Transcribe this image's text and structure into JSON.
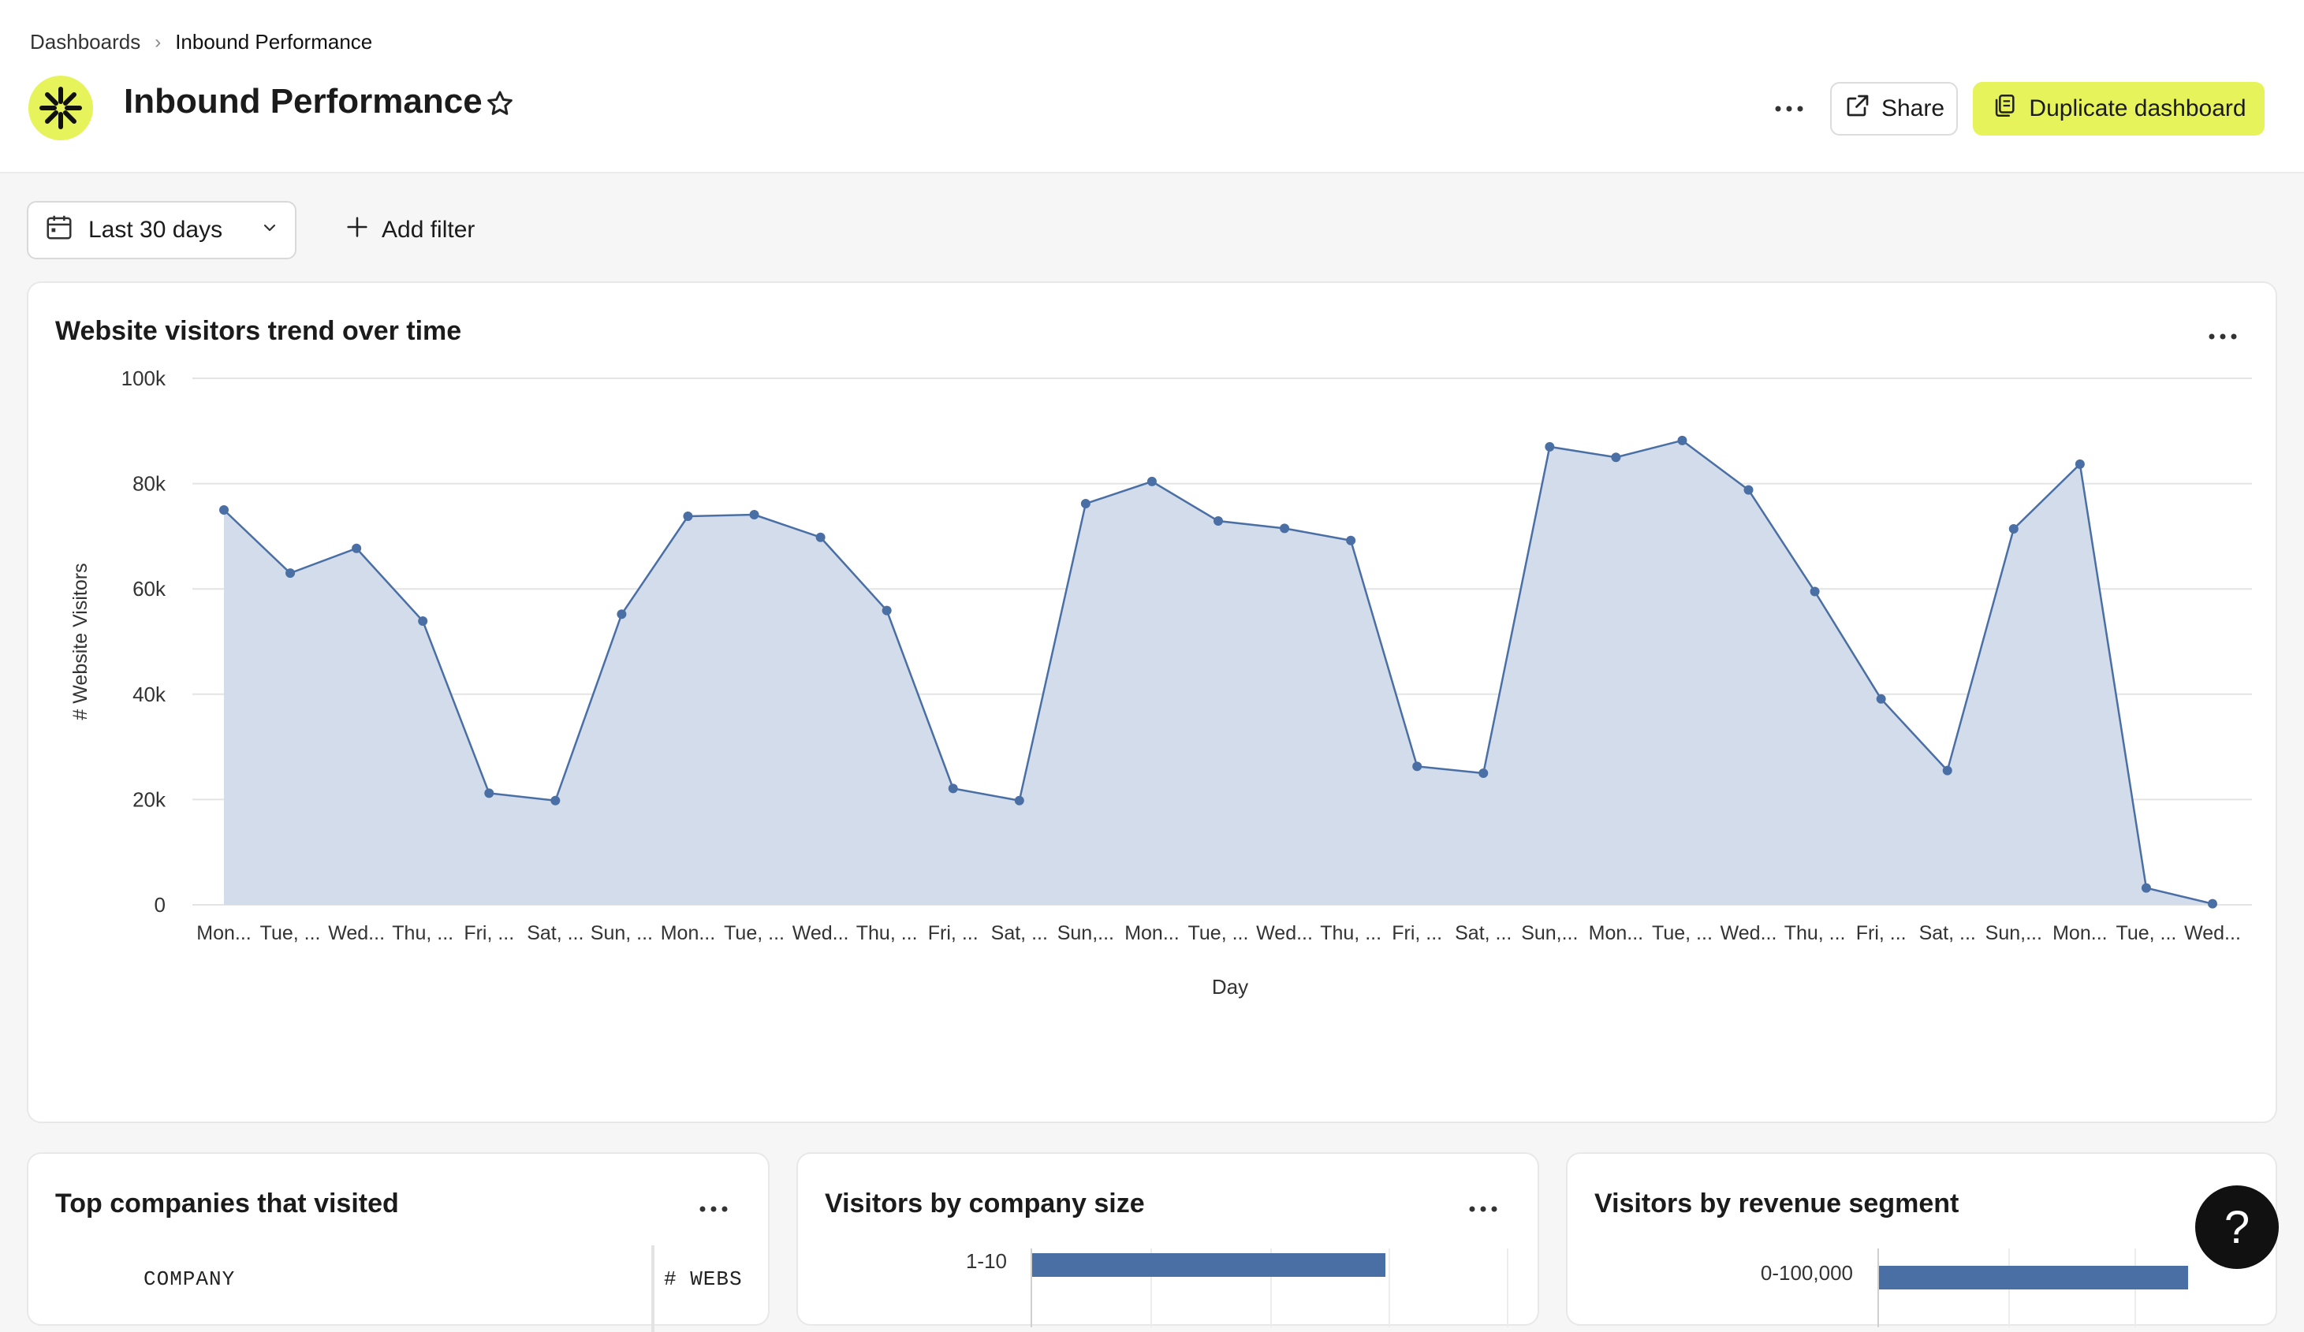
{
  "breadcrumb": {
    "parent": "Dashboards",
    "current": "Inbound Performance"
  },
  "header": {
    "title": "Inbound Performance",
    "share_label": "Share",
    "duplicate_label": "Duplicate dashboard"
  },
  "filters": {
    "date_range": "Last 30 days",
    "add_filter_label": "Add filter"
  },
  "main_card": {
    "title": "Website visitors trend over time"
  },
  "chart_data": [
    {
      "type": "area",
      "title": "Website visitors trend over time",
      "xlabel": "Day",
      "ylabel": "# Website Visitors",
      "ylim": [
        0,
        100000
      ],
      "yticks": [
        "0",
        "20k",
        "40k",
        "60k",
        "80k",
        "100k"
      ],
      "grid": true,
      "color": "#4a6fa5",
      "categories": [
        "Mon...",
        "Tue, ...",
        "Wed...",
        "Thu, ...",
        "Fri, ...",
        "Sat, ...",
        "Sun, ...",
        "Mon...",
        "Tue, ...",
        "Wed...",
        "Thu, ...",
        "Fri, ...",
        "Sat, ...",
        "Sun,...",
        "Mon...",
        "Tue, ...",
        "Wed...",
        "Thu, ...",
        "Fri, ...",
        "Sat, ...",
        "Sun,...",
        "Mon...",
        "Tue, ...",
        "Wed...",
        "Thu, ...",
        "Fri, ...",
        "Sat, ...",
        "Sun,...",
        "Mon...",
        "Tue, ...",
        "Wed..."
      ],
      "values": [
        75000,
        63000,
        67700,
        53900,
        21200,
        19800,
        55200,
        73800,
        74100,
        69800,
        55900,
        22100,
        19800,
        76200,
        80400,
        72900,
        71500,
        69200,
        26300,
        25000,
        87000,
        85000,
        88200,
        78800,
        59500,
        39100,
        25500,
        71400,
        83700,
        3200,
        200
      ]
    },
    {
      "type": "bar",
      "title": "Visitors by company size",
      "categories": [
        "1-10"
      ],
      "values": [
        null
      ],
      "color": "#4a6fa5"
    },
    {
      "type": "bar",
      "title": "Visitors by revenue segment",
      "categories": [
        "0-100,000"
      ],
      "values": [
        null
      ],
      "color": "#4a6fa5"
    }
  ],
  "companies_card": {
    "title": "Top companies that visited",
    "columns": [
      "COMPANY",
      "# WEBS"
    ]
  },
  "icons": [
    "logo-icon",
    "star-icon",
    "more-icon",
    "share-icon",
    "duplicate-icon",
    "calendar-icon",
    "chevron-down-icon",
    "plus-icon",
    "help-icon"
  ],
  "help_label": "?"
}
